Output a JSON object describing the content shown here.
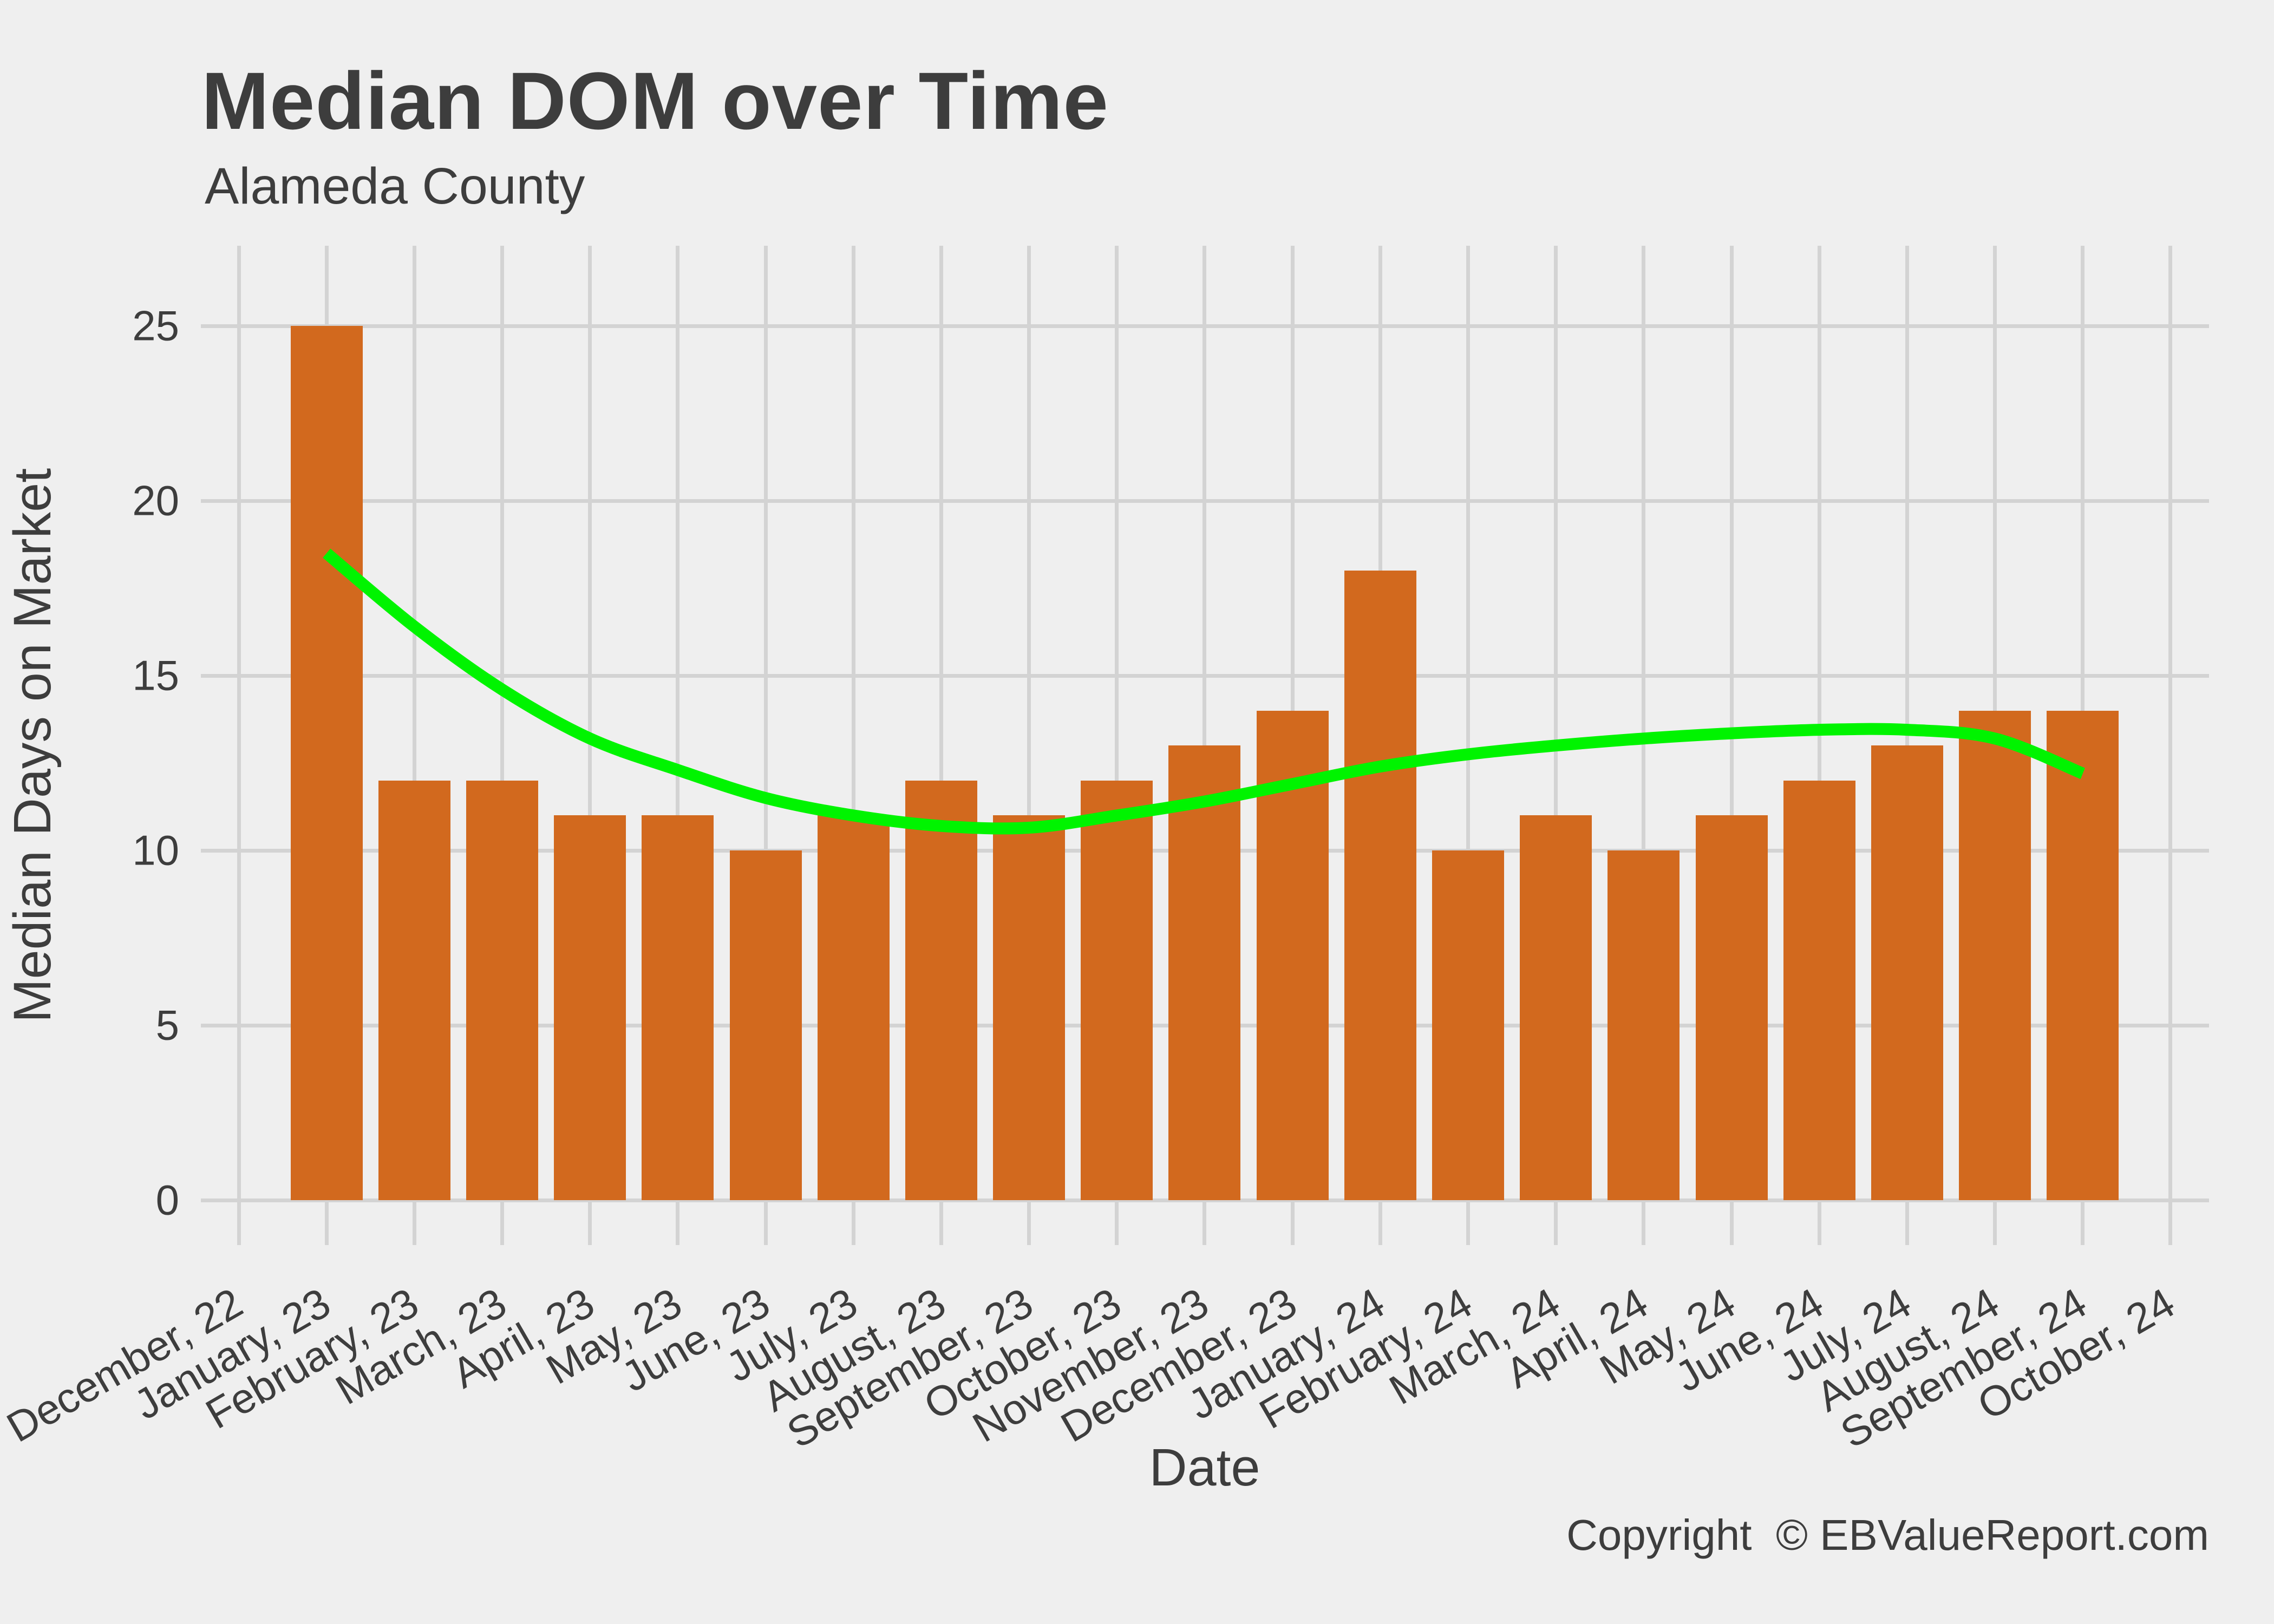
{
  "header": {
    "title": "Median DOM over Time",
    "subtitle": "Alameda County"
  },
  "footer": {
    "copyright": "Copyright  © EBValueReport.com"
  },
  "chart_data": {
    "type": "bar",
    "title": "Median DOM over Time",
    "subtitle": "Alameda County",
    "xlabel": "Date",
    "ylabel": "Median Days on Market",
    "categories": [
      "December, 22",
      "January, 23",
      "February, 23",
      "March, 23",
      "April, 23",
      "May, 23",
      "June, 23",
      "July, 23",
      "August, 23",
      "September, 23",
      "October, 23",
      "November, 23",
      "December, 23",
      "January, 24",
      "February, 24",
      "March, 24",
      "April, 24",
      "May, 24",
      "June, 24",
      "July, 24",
      "August, 24",
      "September, 24",
      "October, 24"
    ],
    "values": [
      null,
      25,
      12,
      12,
      11,
      11,
      10,
      11,
      12,
      11,
      12,
      13,
      14,
      18,
      10,
      11,
      10,
      11,
      12,
      13,
      14,
      14,
      null
    ],
    "series": [
      {
        "name": "Median Days on Market",
        "type": "bar",
        "color": "#d2691e",
        "values": [
          null,
          25,
          12,
          12,
          11,
          11,
          10,
          11,
          12,
          11,
          12,
          13,
          14,
          18,
          10,
          11,
          10,
          11,
          12,
          13,
          14,
          14,
          null
        ]
      },
      {
        "name": "trend",
        "type": "smooth-line",
        "color": "#00f400",
        "start_index": 1,
        "values": [
          18.5,
          16.4,
          14.6,
          13.2,
          12.3,
          11.5,
          11.0,
          10.7,
          10.65,
          11.0,
          11.4,
          11.9,
          12.4,
          12.75,
          13.0,
          13.2,
          13.35,
          13.45,
          13.45,
          13.2,
          12.2
        ]
      }
    ],
    "yticks": [
      0,
      5,
      10,
      15,
      20,
      25
    ],
    "ylim": [
      -1.3,
      27.3
    ],
    "grid": "on",
    "legend": "none",
    "colors": {
      "background": "#efefef",
      "gridline": "#d3d3d3",
      "bar": "#d2691e",
      "trend_line": "#00f400",
      "text": "#3d3d3d"
    }
  }
}
